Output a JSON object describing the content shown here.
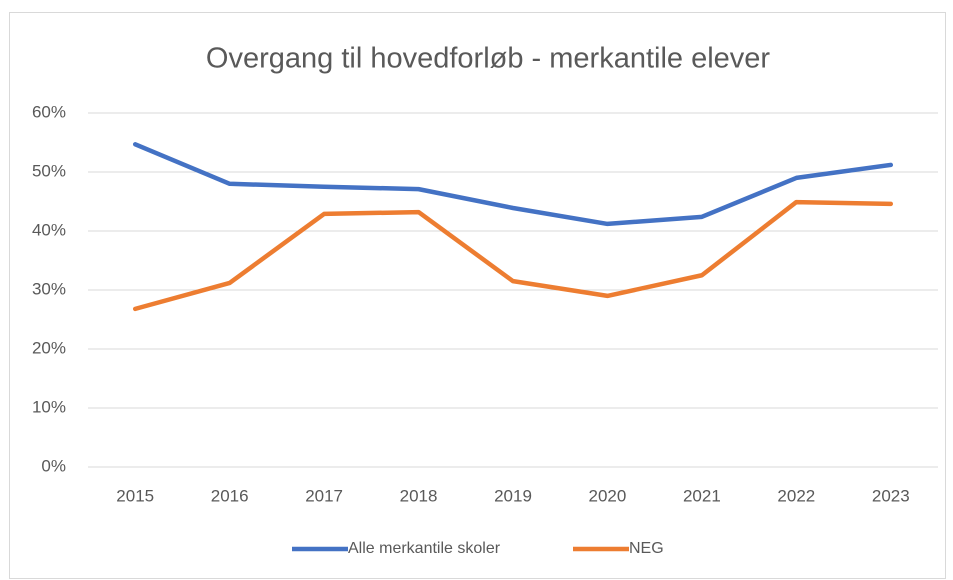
{
  "chart_data": {
    "type": "line",
    "title": "Overgang til hovedforløb - merkantile elever",
    "categories": [
      "2015",
      "2016",
      "2017",
      "2018",
      "2019",
      "2020",
      "2021",
      "2022",
      "2023"
    ],
    "series": [
      {
        "name": "Alle merkantile skoler",
        "color": "#4472c4",
        "values": [
          54.7,
          48.0,
          47.5,
          47.1,
          43.9,
          41.2,
          42.4,
          49.0,
          51.2
        ]
      },
      {
        "name": "NEG",
        "color": "#ed7d31",
        "values": [
          26.8,
          31.2,
          42.9,
          43.2,
          31.5,
          29.0,
          32.5,
          44.9,
          44.6
        ]
      }
    ],
    "ylim": [
      0,
      60
    ],
    "yticks": [
      {
        "value": 0,
        "label": "0%"
      },
      {
        "value": 10,
        "label": "10%"
      },
      {
        "value": 20,
        "label": "20%"
      },
      {
        "value": 30,
        "label": "30%"
      },
      {
        "value": 40,
        "label": "40%"
      },
      {
        "value": 50,
        "label": "50%"
      },
      {
        "value": 60,
        "label": "60%"
      }
    ],
    "grid": true,
    "legend": "bottom"
  }
}
